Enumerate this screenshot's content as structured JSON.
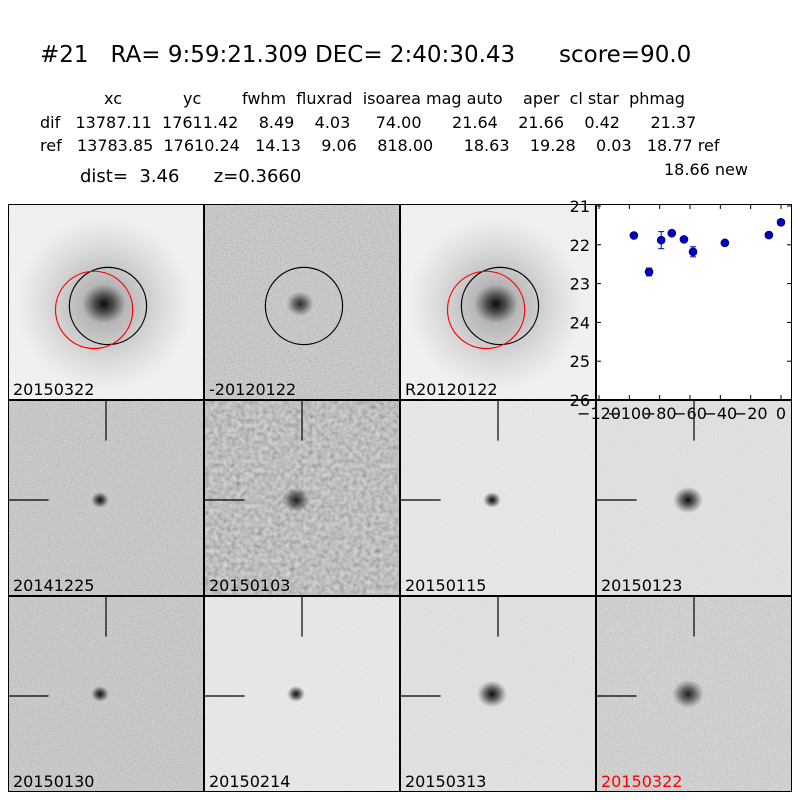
{
  "header": {
    "title": "#21   RA= 9:59:21.309 DEC= 2:40:30.43      score=90.0",
    "columns": "xc            yc        fwhm  fluxrad  isoarea mag auto    aper  cl star  phmag",
    "dif_row": "dif   13787.11  17611.42    8.49    4.03     74.00      21.64    21.66    0.42      21.37",
    "ref_row": "ref   13783.85  17610.24   14.13    9.06    818.00      18.63    19.28    0.03   18.77 ref",
    "new_row": "18.66 new",
    "dist_line": "dist=  3.46      z=0.3660"
  },
  "stamps": {
    "top": [
      {
        "label": "20150322",
        "red_label": false,
        "style": "galaxy",
        "circles": [
          "black",
          "red"
        ]
      },
      {
        "label": "-20120122",
        "red_label": false,
        "style": "diff",
        "circles": [
          "black"
        ]
      },
      {
        "label": "R20120122",
        "red_label": false,
        "style": "galaxy",
        "circles": [
          "black",
          "red"
        ]
      }
    ],
    "row2": [
      {
        "label": "20141225",
        "red_label": false,
        "style": "noisy"
      },
      {
        "label": "20150103",
        "red_label": false,
        "style": "verynoisy"
      },
      {
        "label": "20150115",
        "red_label": false,
        "style": "clean"
      },
      {
        "label": "20150123",
        "red_label": false,
        "style": "clean-big"
      }
    ],
    "row3": [
      {
        "label": "20150130",
        "red_label": false,
        "style": "noisy"
      },
      {
        "label": "20150214",
        "red_label": false,
        "style": "clean"
      },
      {
        "label": "20150313",
        "red_label": false,
        "style": "clean-big"
      },
      {
        "label": "20150322",
        "red_label": true,
        "style": "noisy-big"
      }
    ]
  },
  "colors": {
    "point": "#0000cc",
    "red_circle": "#ff0000",
    "red_label": "#ff0000"
  },
  "chart_data": {
    "type": "scatter",
    "title": "",
    "xlabel": "",
    "ylabel": "",
    "xlim": [
      -120,
      0
    ],
    "ylim": [
      26,
      21
    ],
    "y_inverted": true,
    "xticks": [
      -120,
      -100,
      -80,
      -60,
      -40,
      -20,
      0
    ],
    "xtick_labels": [
      "−120",
      "−100",
      "−80",
      "−60",
      "−40",
      "−20",
      "0"
    ],
    "yticks": [
      21,
      22,
      23,
      24,
      25,
      26
    ],
    "ytick_labels": [
      "21",
      "22",
      "23",
      "24",
      "25",
      "26"
    ],
    "grid": false,
    "series": [
      {
        "marker": "circle",
        "color": "#0000cc",
        "points": [
          {
            "x": -97,
            "y": 21.76,
            "err": 0.05
          },
          {
            "x": -87,
            "y": 22.7,
            "err": 0.1
          },
          {
            "x": -79,
            "y": 21.88,
            "err": 0.22
          },
          {
            "x": -72,
            "y": 21.7,
            "err": 0.05
          },
          {
            "x": -64,
            "y": 21.86,
            "err": 0.06
          },
          {
            "x": -58,
            "y": 22.18,
            "err": 0.13
          },
          {
            "x": -37,
            "y": 21.95,
            "err": 0.05
          },
          {
            "x": -8,
            "y": 21.75,
            "err": 0.05
          },
          {
            "x": 0,
            "y": 21.42,
            "err": 0.05
          }
        ]
      }
    ]
  }
}
